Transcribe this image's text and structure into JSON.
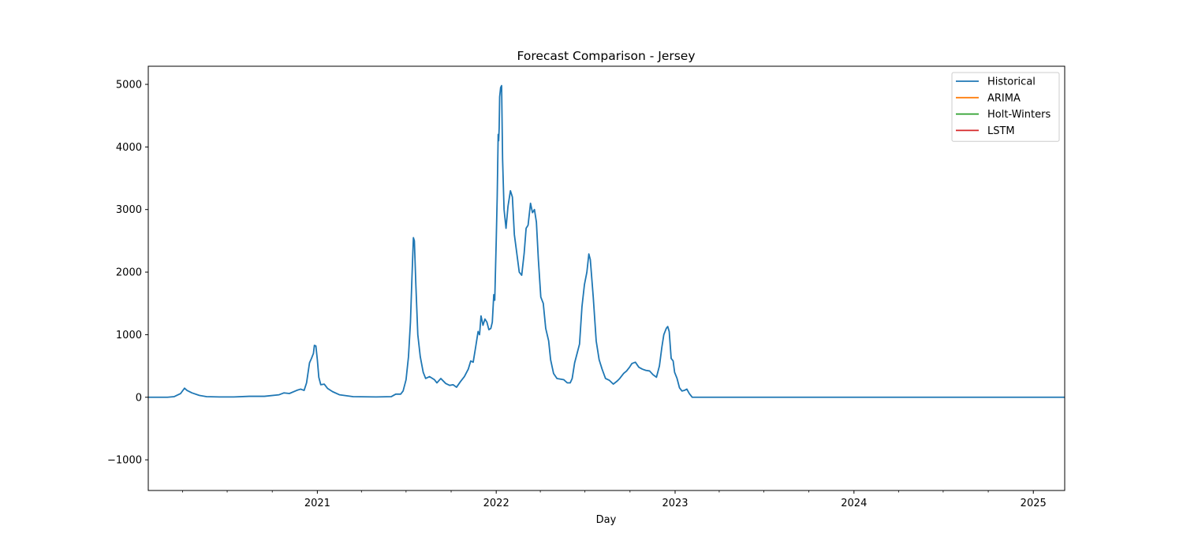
{
  "chart_data": {
    "type": "line",
    "title": "Forecast Comparison - Jersey",
    "xlabel": "Day",
    "ylabel": "",
    "xlim": [
      "2020-01-22",
      "2025-03-06"
    ],
    "ylim": [
      -1490,
      5290
    ],
    "x_ticks": [
      "2021",
      "2022",
      "2023",
      "2024",
      "2025"
    ],
    "y_ticks": [
      "−1000",
      "0",
      "1000",
      "2000",
      "3000",
      "4000",
      "5000"
    ],
    "legend_position": "top-right",
    "grid": false,
    "series": [
      {
        "name": "Historical",
        "color": "#1f77b4",
        "points": [
          [
            "2020-01-22",
            0
          ],
          [
            "2020-03-01",
            0
          ],
          [
            "2020-03-15",
            10
          ],
          [
            "2020-03-28",
            60
          ],
          [
            "2020-04-05",
            145
          ],
          [
            "2020-04-10",
            110
          ],
          [
            "2020-04-20",
            70
          ],
          [
            "2020-05-05",
            30
          ],
          [
            "2020-05-20",
            10
          ],
          [
            "2020-06-15",
            5
          ],
          [
            "2020-07-15",
            5
          ],
          [
            "2020-08-15",
            15
          ],
          [
            "2020-09-15",
            15
          ],
          [
            "2020-10-15",
            40
          ],
          [
            "2020-10-25",
            70
          ],
          [
            "2020-11-05",
            60
          ],
          [
            "2020-11-20",
            110
          ],
          [
            "2020-11-28",
            130
          ],
          [
            "2020-12-05",
            110
          ],
          [
            "2020-12-10",
            230
          ],
          [
            "2020-12-16",
            550
          ],
          [
            "2020-12-20",
            620
          ],
          [
            "2020-12-24",
            700
          ],
          [
            "2020-12-26",
            830
          ],
          [
            "2020-12-29",
            820
          ],
          [
            "2021-01-01",
            600
          ],
          [
            "2021-01-04",
            320
          ],
          [
            "2021-01-08",
            200
          ],
          [
            "2021-01-15",
            210
          ],
          [
            "2021-01-22",
            140
          ],
          [
            "2021-02-01",
            90
          ],
          [
            "2021-02-15",
            40
          ],
          [
            "2021-03-15",
            10
          ],
          [
            "2021-05-01",
            5
          ],
          [
            "2021-06-01",
            10
          ],
          [
            "2021-06-10",
            50
          ],
          [
            "2021-06-20",
            50
          ],
          [
            "2021-06-25",
            100
          ],
          [
            "2021-07-01",
            280
          ],
          [
            "2021-07-06",
            650
          ],
          [
            "2021-07-10",
            1200
          ],
          [
            "2021-07-13",
            1900
          ],
          [
            "2021-07-16",
            2550
          ],
          [
            "2021-07-18",
            2500
          ],
          [
            "2021-07-21",
            1800
          ],
          [
            "2021-07-25",
            1000
          ],
          [
            "2021-07-30",
            650
          ],
          [
            "2021-08-05",
            400
          ],
          [
            "2021-08-10",
            300
          ],
          [
            "2021-08-18",
            330
          ],
          [
            "2021-08-28",
            280
          ],
          [
            "2021-09-02",
            230
          ],
          [
            "2021-09-10",
            300
          ],
          [
            "2021-09-20",
            220
          ],
          [
            "2021-09-28",
            190
          ],
          [
            "2021-10-05",
            200
          ],
          [
            "2021-10-12",
            160
          ],
          [
            "2021-10-20",
            250
          ],
          [
            "2021-10-28",
            330
          ],
          [
            "2021-11-05",
            450
          ],
          [
            "2021-11-10",
            580
          ],
          [
            "2021-11-15",
            560
          ],
          [
            "2021-11-20",
            800
          ],
          [
            "2021-11-25",
            1050
          ],
          [
            "2021-11-28",
            1000
          ],
          [
            "2021-12-01",
            1300
          ],
          [
            "2021-12-05",
            1150
          ],
          [
            "2021-12-09",
            1250
          ],
          [
            "2021-12-13",
            1200
          ],
          [
            "2021-12-17",
            1080
          ],
          [
            "2021-12-21",
            1100
          ],
          [
            "2021-12-24",
            1200
          ],
          [
            "2021-12-27",
            1640
          ],
          [
            "2021-12-29",
            1550
          ],
          [
            "2022-01-01",
            2500
          ],
          [
            "2022-01-03",
            3200
          ],
          [
            "2022-01-05",
            4200
          ],
          [
            "2022-01-06",
            4100
          ],
          [
            "2022-01-07",
            4300
          ],
          [
            "2022-01-08",
            4800
          ],
          [
            "2022-01-10",
            4950
          ],
          [
            "2022-01-12",
            4980
          ],
          [
            "2022-01-14",
            3800
          ],
          [
            "2022-01-17",
            3000
          ],
          [
            "2022-01-21",
            2700
          ],
          [
            "2022-01-25",
            3050
          ],
          [
            "2022-01-30",
            3300
          ],
          [
            "2022-02-03",
            3200
          ],
          [
            "2022-02-07",
            2600
          ],
          [
            "2022-02-12",
            2300
          ],
          [
            "2022-02-17",
            2000
          ],
          [
            "2022-02-22",
            1950
          ],
          [
            "2022-02-27",
            2300
          ],
          [
            "2022-03-03",
            2700
          ],
          [
            "2022-03-07",
            2750
          ],
          [
            "2022-03-12",
            3100
          ],
          [
            "2022-03-16",
            2950
          ],
          [
            "2022-03-20",
            3000
          ],
          [
            "2022-03-24",
            2800
          ],
          [
            "2022-03-28",
            2200
          ],
          [
            "2022-04-02",
            1600
          ],
          [
            "2022-04-07",
            1500
          ],
          [
            "2022-04-12",
            1100
          ],
          [
            "2022-04-18",
            900
          ],
          [
            "2022-04-22",
            600
          ],
          [
            "2022-04-28",
            380
          ],
          [
            "2022-05-05",
            300
          ],
          [
            "2022-05-12",
            290
          ],
          [
            "2022-05-19",
            280
          ],
          [
            "2022-05-26",
            230
          ],
          [
            "2022-06-01",
            230
          ],
          [
            "2022-06-05",
            300
          ],
          [
            "2022-06-10",
            550
          ],
          [
            "2022-06-15",
            700
          ],
          [
            "2022-06-20",
            850
          ],
          [
            "2022-06-25",
            1450
          ],
          [
            "2022-06-30",
            1800
          ],
          [
            "2022-07-05",
            2000
          ],
          [
            "2022-07-09",
            2290
          ],
          [
            "2022-07-12",
            2200
          ],
          [
            "2022-07-18",
            1600
          ],
          [
            "2022-07-24",
            900
          ],
          [
            "2022-07-30",
            600
          ],
          [
            "2022-08-05",
            450
          ],
          [
            "2022-08-12",
            300
          ],
          [
            "2022-08-20",
            270
          ],
          [
            "2022-08-28",
            210
          ],
          [
            "2022-09-05",
            260
          ],
          [
            "2022-09-10",
            300
          ],
          [
            "2022-09-18",
            380
          ],
          [
            "2022-09-24",
            420
          ],
          [
            "2022-09-30",
            480
          ],
          [
            "2022-10-05",
            540
          ],
          [
            "2022-10-12",
            560
          ],
          [
            "2022-10-19",
            480
          ],
          [
            "2022-10-26",
            450
          ],
          [
            "2022-11-02",
            430
          ],
          [
            "2022-11-10",
            420
          ],
          [
            "2022-11-17",
            360
          ],
          [
            "2022-11-24",
            320
          ],
          [
            "2022-11-30",
            500
          ],
          [
            "2022-12-05",
            800
          ],
          [
            "2022-12-09",
            1000
          ],
          [
            "2022-12-14",
            1100
          ],
          [
            "2022-12-17",
            1130
          ],
          [
            "2022-12-20",
            1050
          ],
          [
            "2022-12-24",
            620
          ],
          [
            "2022-12-28",
            580
          ],
          [
            "2022-12-31",
            400
          ],
          [
            "2023-01-05",
            300
          ],
          [
            "2023-01-10",
            150
          ],
          [
            "2023-01-15",
            100
          ],
          [
            "2023-01-20",
            110
          ],
          [
            "2023-01-25",
            130
          ],
          [
            "2023-01-30",
            60
          ],
          [
            "2023-02-05",
            0
          ],
          [
            "2025-03-06",
            0
          ]
        ]
      },
      {
        "name": "ARIMA",
        "color": "#ff7f0e",
        "points": []
      },
      {
        "name": "Holt-Winters",
        "color": "#2ca02c",
        "points": []
      },
      {
        "name": "LSTM",
        "color": "#d62728",
        "points": []
      }
    ]
  }
}
